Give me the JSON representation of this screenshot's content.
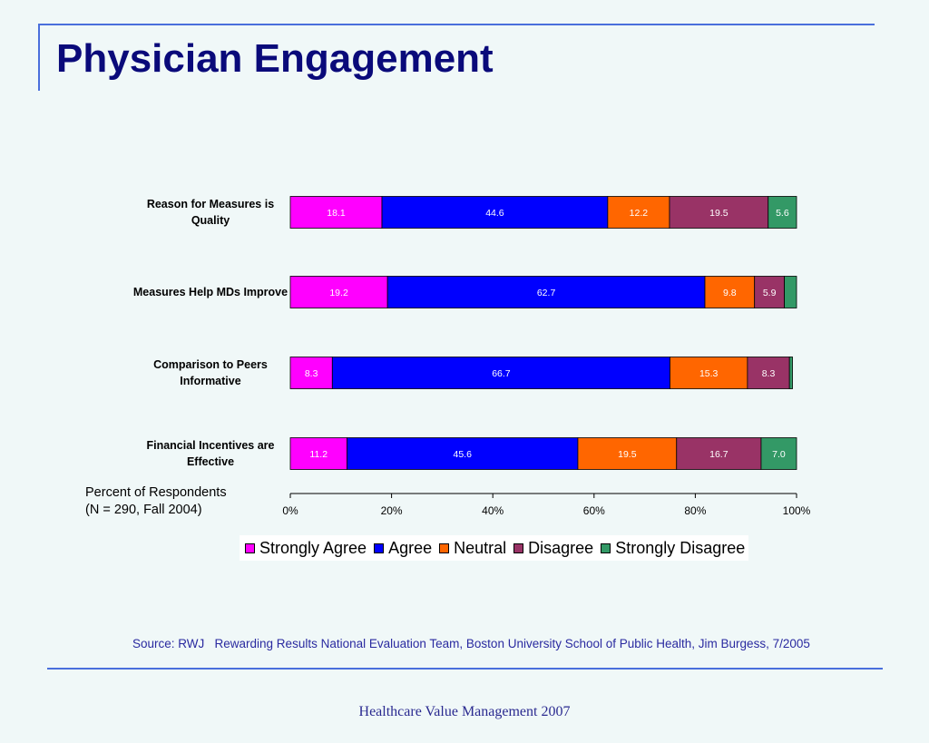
{
  "slide": {
    "title": "Physician Engagement",
    "note_line1": "Percent of Respondents",
    "note_line2": "(N = 290, Fall 2004)",
    "source": "Source: RWJ   Rewarding Results National Evaluation Team, Boston University School of Public Health, Jim Burgess, 7/2005",
    "footer": "Healthcare Value Management 2007"
  },
  "chart_data": {
    "type": "bar",
    "orientation": "horizontal",
    "stacked": true,
    "categories": [
      [
        "Reason for Measures is",
        "Quality"
      ],
      [
        "Measures Help MDs Improve"
      ],
      [
        "Comparison to Peers",
        "Informative"
      ],
      [
        "Financial Incentives are",
        "Effective"
      ]
    ],
    "series": [
      {
        "name": "Strongly Agree",
        "color": "#ff00ff",
        "values": [
          18.1,
          19.2,
          8.3,
          11.2
        ],
        "labels": [
          "18.1",
          "19.2",
          "8.3",
          "11.2"
        ]
      },
      {
        "name": "Agree",
        "color": "#0000ff",
        "values": [
          44.6,
          62.7,
          66.7,
          45.6
        ],
        "labels": [
          "44.6",
          "62.7",
          "66.7",
          "45.6"
        ]
      },
      {
        "name": "Neutral",
        "color": "#ff6600",
        "values": [
          12.2,
          9.8,
          15.3,
          19.5
        ],
        "labels": [
          "12.2",
          "9.8",
          "15.3",
          "19.5"
        ]
      },
      {
        "name": "Disagree",
        "color": "#993366",
        "values": [
          19.5,
          5.9,
          8.3,
          16.7
        ],
        "labels": [
          "19.5",
          "5.9",
          "8.3",
          "16.7"
        ]
      },
      {
        "name": "Strongly Disagree",
        "color": "#339966",
        "values": [
          5.6,
          2.4,
          0.6,
          7.0
        ],
        "labels": [
          "5.6",
          "",
          "",
          "7.0"
        ]
      }
    ],
    "xlim": [
      0,
      100
    ],
    "xticks": [
      "0%",
      "20%",
      "40%",
      "60%",
      "80%",
      "100%"
    ],
    "grid": false,
    "legend_position": "bottom"
  }
}
